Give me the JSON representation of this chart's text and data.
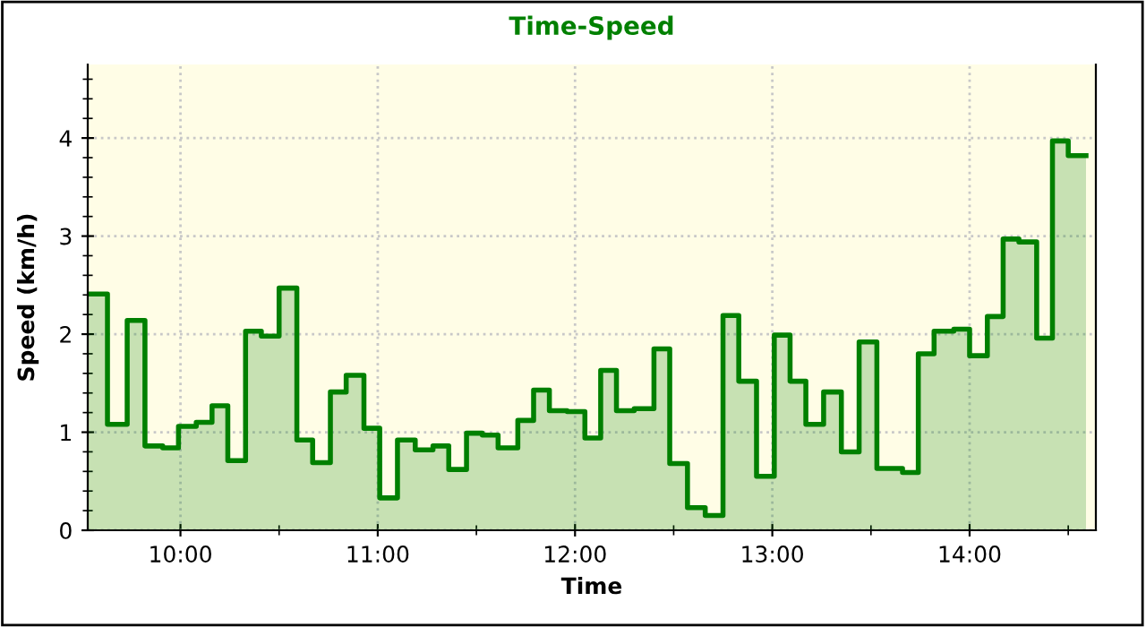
{
  "chart_data": {
    "type": "area",
    "title": "Time-Speed",
    "xlabel": "Time",
    "ylabel": "Speed (km/h)",
    "series": [
      {
        "color": "#008000",
        "x": [
          9.53,
          9.63,
          9.63,
          9.73,
          9.73,
          9.82,
          9.82,
          9.91,
          9.91,
          9.99,
          9.99,
          10.08,
          10.08,
          10.16,
          10.16,
          10.24,
          10.24,
          10.33,
          10.33,
          10.41,
          10.41,
          10.5,
          10.5,
          10.59,
          10.59,
          10.67,
          10.67,
          10.76,
          10.76,
          10.84,
          10.84,
          10.93,
          10.93,
          11.01,
          11.01,
          11.1,
          11.1,
          11.19,
          11.19,
          11.28,
          11.28,
          11.36,
          11.36,
          11.45,
          11.45,
          11.53,
          11.53,
          11.61,
          11.61,
          11.71,
          11.71,
          11.79,
          11.79,
          11.87,
          11.87,
          11.96,
          11.96,
          12.05,
          12.05,
          12.13,
          12.13,
          12.21,
          12.21,
          12.3,
          12.3,
          12.4,
          12.4,
          12.48,
          12.48,
          12.57,
          12.57,
          12.66,
          12.66,
          12.75,
          12.75,
          12.83,
          12.83,
          12.92,
          12.92,
          13.01,
          13.01,
          13.09,
          13.09,
          13.17,
          13.17,
          13.26,
          13.26,
          13.35,
          13.35,
          13.44,
          13.44,
          13.53,
          13.53,
          13.66,
          13.66,
          13.74,
          13.74,
          13.82,
          13.82,
          13.92,
          13.92,
          14.0,
          14.0,
          14.09,
          14.09,
          14.17,
          14.17,
          14.25,
          14.25,
          14.34,
          14.34,
          14.42,
          14.42,
          14.5,
          14.5,
          14.59
        ],
        "values": [
          2.41,
          2.41,
          1.08,
          1.08,
          2.14,
          2.14,
          0.86,
          0.86,
          0.84,
          0.84,
          1.06,
          1.06,
          1.1,
          1.1,
          1.27,
          1.27,
          0.71,
          0.71,
          2.03,
          2.03,
          1.98,
          1.98,
          2.47,
          2.47,
          0.92,
          0.92,
          0.69,
          0.69,
          1.41,
          1.41,
          1.58,
          1.58,
          1.04,
          1.04,
          0.33,
          0.33,
          0.92,
          0.92,
          0.82,
          0.82,
          0.86,
          0.86,
          0.62,
          0.62,
          0.99,
          0.99,
          0.97,
          0.97,
          0.84,
          0.84,
          1.12,
          1.12,
          1.43,
          1.43,
          1.22,
          1.22,
          1.21,
          1.21,
          0.94,
          0.94,
          1.63,
          1.63,
          1.22,
          1.22,
          1.24,
          1.24,
          1.85,
          1.85,
          0.68,
          0.68,
          0.23,
          0.23,
          0.15,
          0.15,
          2.19,
          2.19,
          1.52,
          1.52,
          0.55,
          0.55,
          1.99,
          1.99,
          1.52,
          1.52,
          1.08,
          1.08,
          1.41,
          1.41,
          0.8,
          0.8,
          1.92,
          1.92,
          0.63,
          0.63,
          0.59,
          0.59,
          1.8,
          1.8,
          2.03,
          2.03,
          2.05,
          2.05,
          1.78,
          1.78,
          2.18,
          2.18,
          2.97,
          2.97,
          2.94,
          2.94,
          1.96,
          1.96,
          3.97,
          3.97,
          3.82,
          3.82
        ]
      }
    ],
    "xlim": [
      9.53,
      14.64
    ],
    "ylim": [
      0,
      4.75
    ],
    "xticks": [
      {
        "value": 10,
        "label": "10:00"
      },
      {
        "value": 10.5,
        "label": null
      },
      {
        "value": 11,
        "label": "11:00"
      },
      {
        "value": 11.5,
        "label": null
      },
      {
        "value": 12,
        "label": "12:00"
      },
      {
        "value": 12.5,
        "label": null
      },
      {
        "value": 13,
        "label": "13:00"
      },
      {
        "value": 13.5,
        "label": null
      },
      {
        "value": 14,
        "label": "14:00"
      },
      {
        "value": 14.5,
        "label": null
      }
    ],
    "yticks": [
      0,
      {
        "value": 0.2,
        "label": null
      },
      {
        "value": 0.4,
        "label": null
      },
      {
        "value": 0.6,
        "label": null
      },
      {
        "value": 0.8,
        "label": null
      },
      1,
      {
        "value": 1.2,
        "label": null
      },
      {
        "value": 1.4,
        "label": null
      },
      {
        "value": 1.6,
        "label": null
      },
      {
        "value": 1.8,
        "label": null
      },
      2,
      {
        "value": 2.2,
        "label": null
      },
      {
        "value": 2.4,
        "label": null
      },
      {
        "value": 2.6,
        "label": null
      },
      {
        "value": 2.8,
        "label": null
      },
      3,
      {
        "value": 3.2,
        "label": null
      },
      {
        "value": 3.4,
        "label": null
      },
      {
        "value": 3.6,
        "label": null
      },
      {
        "value": 3.8,
        "label": null
      },
      4,
      {
        "value": 4.2,
        "label": null
      },
      {
        "value": 4.4,
        "label": null
      },
      {
        "value": 4.6,
        "label": null
      }
    ],
    "grid": true,
    "line_style": "solid"
  }
}
